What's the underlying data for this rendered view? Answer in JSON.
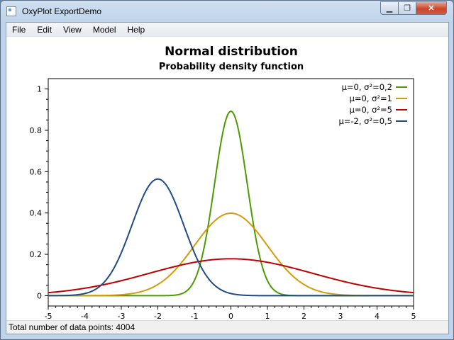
{
  "window": {
    "title": "OxyPlot ExportDemo",
    "minimize": "▁",
    "maximize": "❐",
    "close": "✕"
  },
  "menu": [
    "File",
    "Edit",
    "View",
    "Model",
    "Help"
  ],
  "status": {
    "text": "Total number of data points: 4004"
  },
  "chart_data": {
    "type": "line",
    "title": "Normal distribution",
    "subtitle": "Probability density function",
    "xlim": [
      -5,
      5
    ],
    "ylim": [
      -0.05,
      1.05
    ],
    "x_ticks": [
      "-5",
      "-4",
      "-3",
      "-2",
      "-1",
      "0",
      "1",
      "2",
      "3",
      "4",
      "5"
    ],
    "y_ticks": [
      "0",
      "0.2",
      "0.4",
      "0.6",
      "0.8",
      "1"
    ],
    "legend_position": "top-right",
    "series": [
      {
        "name": "μ=0, σ²=0,2",
        "mean": 0,
        "variance": 0.2,
        "color": "#4e9a06"
      },
      {
        "name": "μ=0, σ²=1",
        "mean": 0,
        "variance": 1,
        "color": "#d49a0a"
      },
      {
        "name": "μ=0, σ²=5",
        "mean": 0,
        "variance": 5,
        "color": "#c00000"
      },
      {
        "name": "μ=-2, σ²=0,5",
        "mean": -2,
        "variance": 0.5,
        "color": "#204a87"
      }
    ]
  }
}
